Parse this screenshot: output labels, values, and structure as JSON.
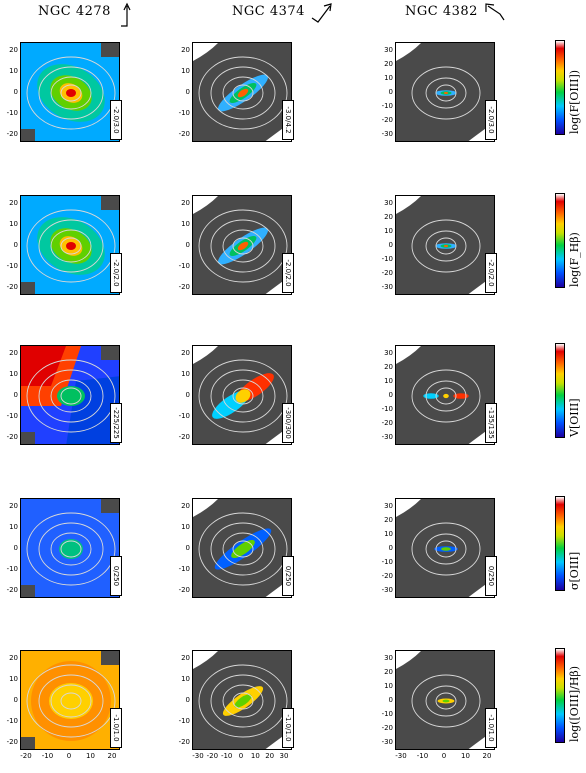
{
  "columns": [
    {
      "title": "NGC 4278",
      "arrow": "up-arrow"
    },
    {
      "title": "NGC 4374",
      "arrow": "northeast-arrow"
    },
    {
      "title": "NGC 4382",
      "arrow": "northwest-arrow"
    }
  ],
  "rows": [
    {
      "quantity": "log(F[OIII])",
      "ranges": [
        "-2.0/3.0",
        "-3.0/4.2",
        "-2.0/3.0"
      ]
    },
    {
      "quantity": "log(F_Hβ)",
      "ranges": [
        "-2.0/2.0",
        "-2.0/2.0",
        "-2.0/2.0"
      ]
    },
    {
      "quantity": "V[OIII]",
      "ranges": [
        "-225/225",
        "-300/300",
        "-135/135"
      ]
    },
    {
      "quantity": "σ[OIII]",
      "ranges": [
        "0/250",
        "0/250",
        "0/250"
      ]
    },
    {
      "quantity": "log([OIII]/Hβ)",
      "ranges": [
        "-1.0/1.0",
        "-1.0/1.0",
        "-1.0/1.0"
      ]
    }
  ],
  "axes": {
    "col1": {
      "yticks": [
        "20",
        "10",
        "0",
        "-10",
        "-20"
      ],
      "xticks": [
        "-20",
        "-10",
        "0",
        "10",
        "20"
      ]
    },
    "col2": {
      "yticks": [
        "20",
        "10",
        "0",
        "-10",
        "-20"
      ],
      "xticks": [
        "-30",
        "-20",
        "-10",
        "0",
        "10",
        "20",
        "30"
      ]
    },
    "col3": {
      "yticks": [
        "30",
        "20",
        "10",
        "0",
        "-10",
        "-20",
        "-30"
      ],
      "xticks": [
        "-30",
        "-10",
        "0",
        "10",
        "20"
      ]
    }
  },
  "colors": {
    "background_mask": "#4a4a4a",
    "contour": "#d8d8d8"
  }
}
